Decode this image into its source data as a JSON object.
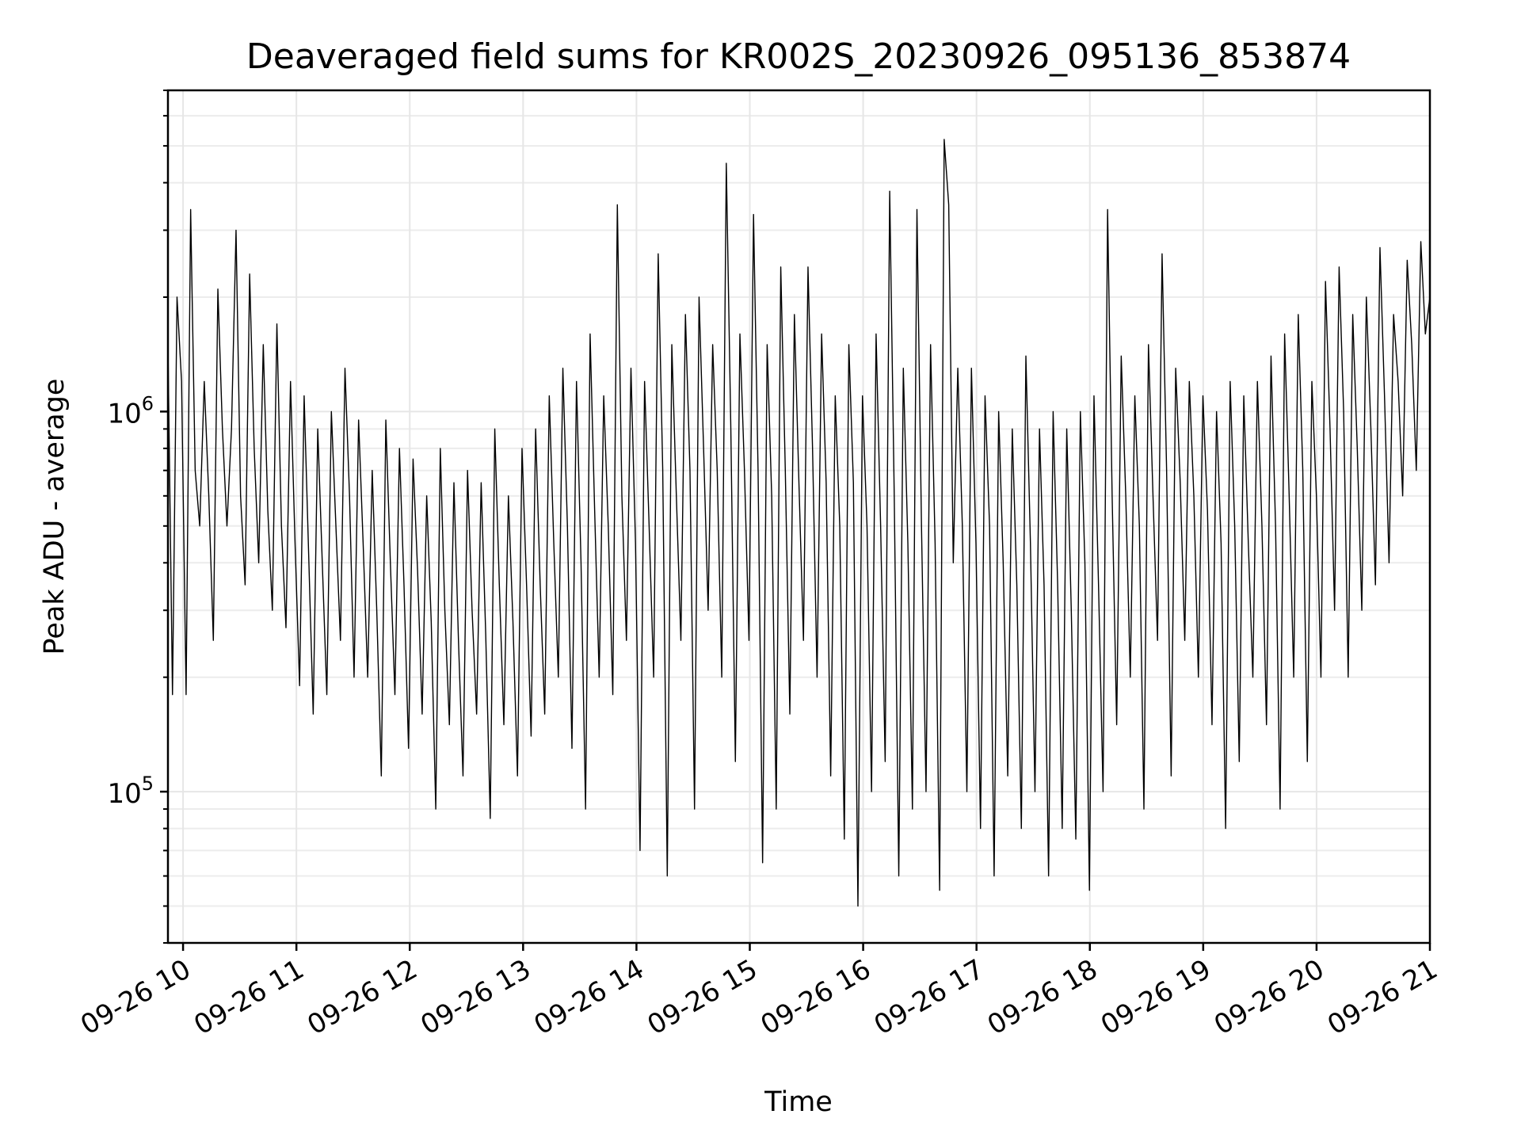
{
  "chart_data": {
    "type": "line",
    "title": "Deaveraged field sums for KR002S_20230926_095136_853874",
    "xlabel": "Time",
    "ylabel": "Peak ADU - average",
    "yscale": "log",
    "xlim": [
      "2023-09-26 09:52",
      "2023-09-26 21:00"
    ],
    "ylim": [
      40000,
      7000000
    ],
    "x_tick_labels": [
      "09-26 10",
      "09-26 11",
      "09-26 12",
      "09-26 13",
      "09-26 14",
      "09-26 15",
      "09-26 16",
      "09-26 17",
      "09-26 18",
      "09-26 19",
      "09-26 20",
      "09-26 21"
    ],
    "y_tick_labels": [
      {
        "value": 100000,
        "base": "10",
        "exp": "5"
      },
      {
        "value": 1000000,
        "base": "10",
        "exp": "6"
      }
    ],
    "grid": true,
    "line_color": "#000000",
    "series": [
      {
        "x_start": "2023-09-26 09:52",
        "x_end": "2023-09-26 21:00",
        "values": [
          1500000,
          180000,
          2000000,
          1200000,
          180000,
          3400000,
          700000,
          500000,
          1200000,
          600000,
          250000,
          2100000,
          900000,
          500000,
          900000,
          3000000,
          600000,
          350000,
          2300000,
          800000,
          400000,
          1500000,
          550000,
          300000,
          1700000,
          500000,
          270000,
          1200000,
          450000,
          190000,
          1100000,
          420000,
          160000,
          900000,
          400000,
          180000,
          1000000,
          500000,
          250000,
          1300000,
          600000,
          200000,
          950000,
          450000,
          200000,
          700000,
          300000,
          110000,
          950000,
          400000,
          180000,
          800000,
          350000,
          130000,
          750000,
          380000,
          160000,
          600000,
          280000,
          90000,
          800000,
          300000,
          150000,
          650000,
          250000,
          110000,
          700000,
          300000,
          160000,
          650000,
          260000,
          85000,
          900000,
          350000,
          150000,
          600000,
          280000,
          110000,
          800000,
          350000,
          140000,
          900000,
          350000,
          160000,
          1100000,
          450000,
          200000,
          1300000,
          500000,
          130000,
          1200000,
          400000,
          90000,
          1600000,
          550000,
          200000,
          1100000,
          500000,
          180000,
          3500000,
          600000,
          250000,
          1300000,
          450000,
          70000,
          1200000,
          500000,
          200000,
          2600000,
          700000,
          60000,
          1500000,
          600000,
          250000,
          1800000,
          700000,
          90000,
          2000000,
          800000,
          300000,
          1500000,
          700000,
          200000,
          4500000,
          900000,
          120000,
          1600000,
          700000,
          250000,
          3300000,
          700000,
          65000,
          1500000,
          600000,
          90000,
          2400000,
          700000,
          160000,
          1800000,
          650000,
          250000,
          2400000,
          800000,
          200000,
          1600000,
          650000,
          110000,
          1100000,
          500000,
          75000,
          1500000,
          650000,
          50000,
          1100000,
          500000,
          100000,
          1600000,
          500000,
          120000,
          3800000,
          600000,
          60000,
          1300000,
          450000,
          90000,
          3400000,
          500000,
          100000,
          1500000,
          450000,
          55000,
          5200000,
          3500000,
          400000,
          1300000,
          500000,
          100000,
          1300000,
          450000,
          80000,
          1100000,
          500000,
          60000,
          1000000,
          400000,
          110000,
          900000,
          350000,
          80000,
          1400000,
          450000,
          100000,
          900000,
          350000,
          60000,
          1000000,
          350000,
          80000,
          900000,
          300000,
          75000,
          1000000,
          400000,
          55000,
          1100000,
          350000,
          100000,
          3400000,
          600000,
          150000,
          1400000,
          600000,
          200000,
          1100000,
          500000,
          90000,
          1500000,
          600000,
          250000,
          2600000,
          700000,
          110000,
          1300000,
          650000,
          250000,
          1200000,
          600000,
          200000,
          1100000,
          550000,
          150000,
          1000000,
          450000,
          80000,
          1200000,
          500000,
          120000,
          1100000,
          450000,
          200000,
          1200000,
          500000,
          150000,
          1400000,
          500000,
          90000,
          1600000,
          600000,
          200000,
          1800000,
          700000,
          120000,
          1200000,
          600000,
          200000,
          2200000,
          900000,
          300000,
          2400000,
          1000000,
          200000,
          1800000,
          800000,
          300000,
          2000000,
          900000,
          350000,
          2700000,
          1100000,
          400000,
          1800000,
          1200000,
          600000,
          2500000,
          1500000,
          700000,
          2800000,
          1600000,
          2000000
        ]
      }
    ]
  }
}
